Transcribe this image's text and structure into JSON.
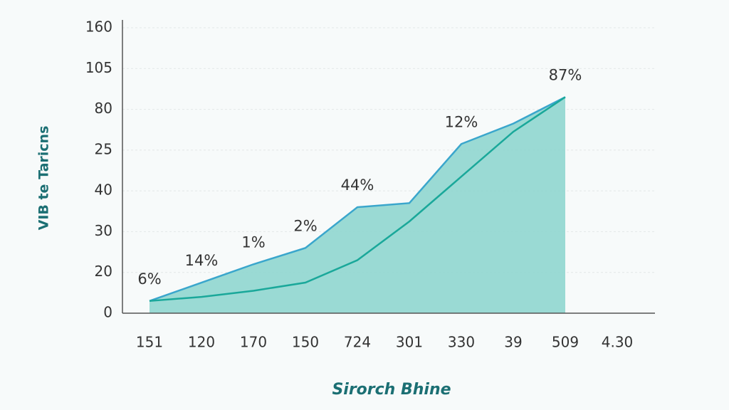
{
  "chart_data": {
    "type": "area",
    "y_label": "VIB te Taricns",
    "x_label": "Sirorch Bhine",
    "categories": [
      "151",
      "120",
      "170",
      "150",
      "724",
      "301",
      "330",
      "39",
      "509",
      "4.30"
    ],
    "series": [
      {
        "color": "#3aa6cc",
        "values": [
          6,
          15,
          24,
          32,
          52,
          54,
          83,
          93,
          106,
          null
        ]
      },
      {
        "color": "#1aa89a",
        "values": [
          6,
          8,
          11,
          15,
          26,
          45,
          67,
          89,
          106,
          null
        ]
      }
    ],
    "point_labels": [
      "6%",
      "14%",
      "1%",
      "2%",
      "44%",
      null,
      "12%",
      null,
      "87%",
      null
    ],
    "fill": "#8fd6cf",
    "ylim": [
      0,
      140
    ],
    "yticks": [
      0,
      20,
      {
        "value": 40,
        "label": "30"
      },
      {
        "value": 60,
        "label": "40"
      },
      {
        "value": 80,
        "label": "25"
      },
      {
        "value": 100,
        "label": "80"
      },
      {
        "value": 120,
        "label": "105"
      },
      {
        "value": 140,
        "label": "160"
      }
    ],
    "grid": true
  }
}
